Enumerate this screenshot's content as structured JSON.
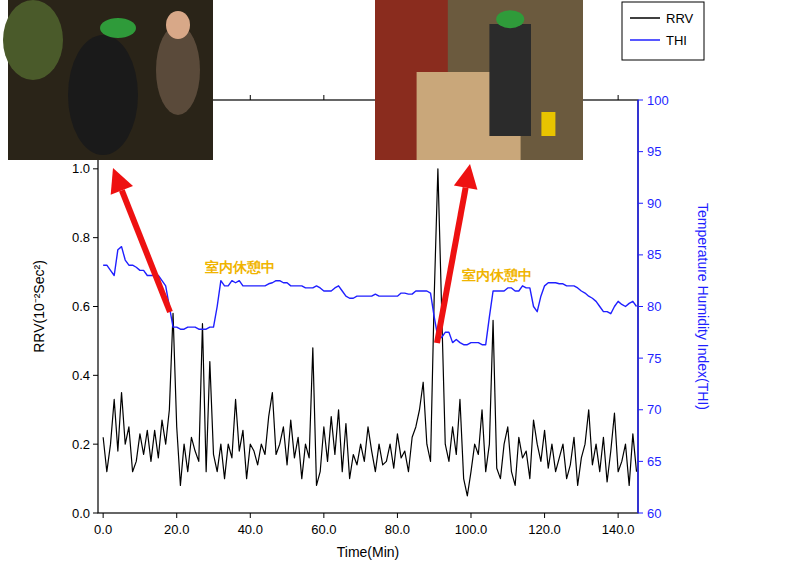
{
  "chart_data": {
    "type": "line",
    "x_label": "Time(Min)",
    "y_label": "RRV(10⁻²Sec²)",
    "y2_label": "Temperature Humidity Index(THI)",
    "annotations": [
      "室内休憩中",
      "室内休憩中"
    ],
    "legend": "upper right",
    "grid": false,
    "xlim": [
      -1.4,
      145.4
    ],
    "xticks": [
      {
        "value": 0,
        "label": "0.0"
      },
      {
        "value": 20,
        "label": "20.0"
      },
      {
        "value": 40,
        "label": "40.0"
      },
      {
        "value": 60,
        "label": "60.0"
      },
      {
        "value": 80,
        "label": "80.0"
      },
      {
        "value": 100,
        "label": "100.0"
      },
      {
        "value": 120,
        "label": "120.0"
      },
      {
        "value": 140,
        "label": "140.0"
      }
    ],
    "ylim": [
      0,
      1.2
    ],
    "yticks": [
      {
        "value": 0,
        "label": "0.0"
      },
      {
        "value": 0.2,
        "label": "0.2"
      },
      {
        "value": 0.4,
        "label": "0.4"
      },
      {
        "value": 0.6,
        "label": "0.6"
      },
      {
        "value": 0.8,
        "label": "0.8"
      },
      {
        "value": 1.0,
        "label": "1.0"
      }
    ],
    "y2lim": [
      60,
      100
    ],
    "y2ticks": [
      60,
      65,
      70,
      75,
      80,
      85,
      90,
      95,
      100
    ],
    "x": [
      0,
      1,
      2,
      3,
      4,
      5,
      6,
      7,
      8,
      9,
      10,
      11,
      12,
      13,
      14,
      15,
      16,
      17,
      18,
      19,
      20,
      21,
      22,
      23,
      24,
      25,
      26,
      27,
      28,
      29,
      30,
      31,
      32,
      33,
      34,
      35,
      36,
      37,
      38,
      39,
      40,
      41,
      42,
      43,
      44,
      45,
      46,
      47,
      48,
      49,
      50,
      51,
      52,
      53,
      54,
      55,
      56,
      57,
      58,
      59,
      60,
      61,
      62,
      63,
      64,
      65,
      66,
      67,
      68,
      69,
      70,
      71,
      72,
      73,
      74,
      75,
      76,
      77,
      78,
      79,
      80,
      81,
      82,
      83,
      84,
      85,
      86,
      87,
      88,
      89,
      90,
      91,
      92,
      93,
      94,
      95,
      96,
      97,
      98,
      99,
      100,
      101,
      102,
      103,
      104,
      105,
      106,
      107,
      108,
      109,
      110,
      111,
      112,
      113,
      114,
      115,
      116,
      117,
      118,
      119,
      120,
      121,
      122,
      123,
      124,
      125,
      126,
      127,
      128,
      129,
      130,
      131,
      132,
      133,
      134,
      135,
      136,
      137,
      138,
      139,
      140,
      141,
      142,
      143,
      144,
      145
    ],
    "series": [
      {
        "name": "RRV",
        "color": "#000000",
        "axis": "y",
        "values": [
          0.22,
          0.12,
          0.2,
          0.33,
          0.18,
          0.35,
          0.2,
          0.25,
          0.12,
          0.15,
          0.23,
          0.17,
          0.24,
          0.15,
          0.24,
          0.16,
          0.27,
          0.2,
          0.3,
          0.58,
          0.25,
          0.08,
          0.2,
          0.12,
          0.22,
          0.18,
          0.15,
          0.55,
          0.12,
          0.44,
          0.17,
          0.12,
          0.2,
          0.1,
          0.2,
          0.16,
          0.33,
          0.18,
          0.24,
          0.1,
          0.2,
          0.18,
          0.14,
          0.2,
          0.17,
          0.28,
          0.35,
          0.17,
          0.2,
          0.25,
          0.14,
          0.27,
          0.16,
          0.22,
          0.1,
          0.2,
          0.16,
          0.48,
          0.08,
          0.12,
          0.25,
          0.15,
          0.28,
          0.17,
          0.3,
          0.12,
          0.26,
          0.1,
          0.17,
          0.14,
          0.2,
          0.15,
          0.25,
          0.18,
          0.12,
          0.2,
          0.14,
          0.15,
          0.2,
          0.13,
          0.23,
          0.16,
          0.18,
          0.12,
          0.22,
          0.25,
          0.3,
          0.38,
          0.2,
          0.15,
          0.63,
          1.0,
          0.6,
          0.2,
          0.15,
          0.25,
          0.17,
          0.33,
          0.1,
          0.05,
          0.12,
          0.2,
          0.17,
          0.3,
          0.12,
          0.2,
          0.56,
          0.13,
          0.1,
          0.2,
          0.25,
          0.12,
          0.08,
          0.22,
          0.16,
          0.18,
          0.1,
          0.27,
          0.2,
          0.15,
          0.24,
          0.13,
          0.2,
          0.12,
          0.16,
          0.2,
          0.1,
          0.14,
          0.22,
          0.08,
          0.16,
          0.2,
          0.3,
          0.14,
          0.2,
          0.12,
          0.22,
          0.09,
          0.18,
          0.29,
          0.12,
          0.15,
          0.2,
          0.08,
          0.23,
          0.12
        ]
      },
      {
        "name": "THI",
        "color": "#1f1fff",
        "axis": "y2",
        "values": [
          84,
          84,
          83.5,
          83,
          85.5,
          85.8,
          84.5,
          84,
          84,
          83.8,
          83.5,
          83.5,
          83,
          83,
          83,
          83,
          82.5,
          82,
          80,
          78,
          78,
          77.8,
          77.8,
          78,
          78,
          78,
          77.8,
          77.8,
          77.8,
          78,
          78,
          80,
          82.5,
          82,
          82,
          82.5,
          82.3,
          82.5,
          82,
          82,
          82,
          82,
          82,
          82,
          82,
          82.2,
          82.3,
          82.5,
          82.5,
          82.3,
          82.3,
          82,
          82,
          82,
          82,
          81.8,
          81.8,
          81.8,
          82,
          81.8,
          81.5,
          81.5,
          81.5,
          81.8,
          82,
          81.5,
          81,
          80.8,
          80.8,
          81,
          81,
          81,
          81,
          81,
          81.2,
          81,
          81,
          81,
          81,
          81,
          81,
          81.3,
          81.3,
          81.2,
          81.2,
          81.5,
          81.5,
          81.5,
          81.5,
          81.3,
          79,
          77,
          77,
          77.5,
          77.5,
          76.5,
          76.8,
          76.5,
          76.3,
          76.3,
          76.5,
          76.5,
          76.5,
          76.3,
          76.3,
          79,
          81.5,
          81.5,
          81.5,
          81.5,
          81.8,
          81.8,
          81.5,
          81.5,
          82,
          81.8,
          81.8,
          80,
          79.5,
          81,
          82,
          82.3,
          82.3,
          82.3,
          82.2,
          82.2,
          82,
          82,
          82,
          81.8,
          81.5,
          81.3,
          81,
          80.8,
          80.5,
          80,
          79.5,
          79.5,
          79.3,
          80,
          80.5,
          80.2,
          80,
          80.3,
          80.5,
          80
        ]
      }
    ]
  }
}
